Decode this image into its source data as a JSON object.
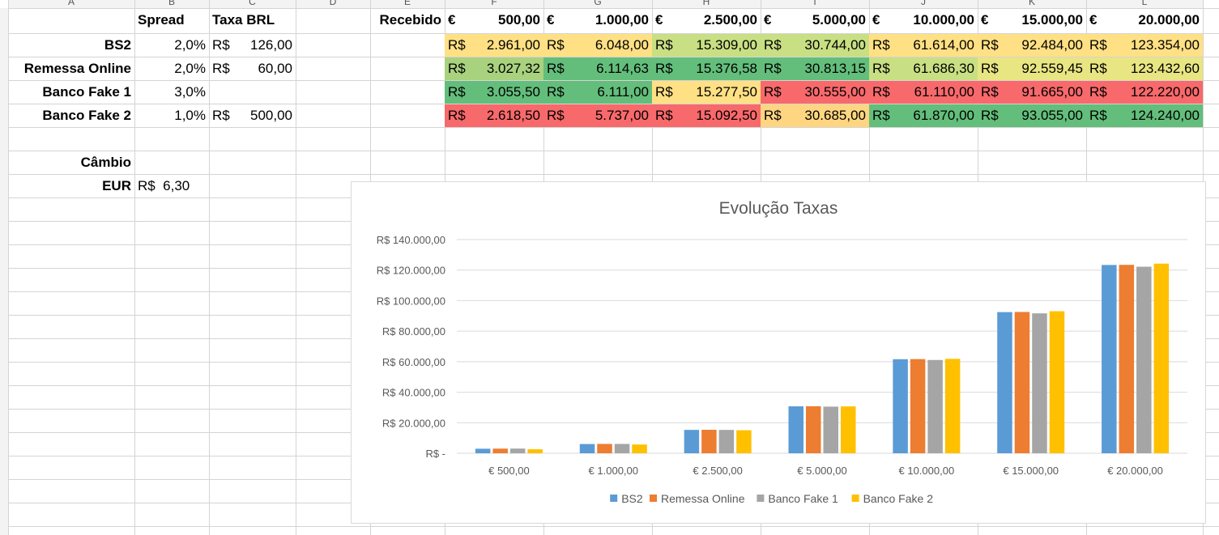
{
  "sheet": {
    "column_headers": [
      "A",
      "B",
      "C",
      "D",
      "E",
      "F",
      "G",
      "H",
      "I",
      "J",
      "K",
      "L"
    ],
    "headers": {
      "spread": "Spread",
      "taxa_brl": "Taxa BRL",
      "recebido": "Recebido",
      "cambio": "Câmbio"
    },
    "currency_symbol_eur": "€",
    "currency_symbol_brl": "R$",
    "amounts": [
      "500,00",
      "1.000,00",
      "2.500,00",
      "5.000,00",
      "10.000,00",
      "15.000,00",
      "20.000,00"
    ],
    "banks": [
      {
        "name": "BS2",
        "spread": "2,0%",
        "taxa": "126,00",
        "received": [
          "2.961,00",
          "6.048,00",
          "15.309,00",
          "30.744,00",
          "61.614,00",
          "92.484,00",
          "123.354,00"
        ],
        "colors": [
          "#ffe084",
          "#ffe084",
          "#c9df83",
          "#c9df83",
          "#ffe084",
          "#ffe084",
          "#ffe084"
        ]
      },
      {
        "name": "Remessa Online",
        "spread": "2,0%",
        "taxa": "60,00",
        "received": [
          "3.027,32",
          "6.114,63",
          "15.376,58",
          "30.813,15",
          "61.686,30",
          "92.559,45",
          "123.432,60"
        ],
        "colors": [
          "#a9d27f",
          "#63be7b",
          "#63be7b",
          "#63be7b",
          "#c9df83",
          "#e8e583",
          "#e8e583"
        ]
      },
      {
        "name": "Banco Fake 1",
        "spread": "3,0%",
        "taxa": "",
        "received": [
          "3.055,50",
          "6.111,00",
          "15.277,50",
          "30.555,00",
          "61.110,00",
          "91.665,00",
          "122.220,00"
        ],
        "colors": [
          "#63be7b",
          "#63be7b",
          "#ffe084",
          "#f8696b",
          "#f8696b",
          "#f8696b",
          "#f8696b"
        ]
      },
      {
        "name": "Banco Fake 2",
        "spread": "1,0%",
        "taxa": "500,00",
        "received": [
          "2.618,50",
          "5.737,00",
          "15.092,50",
          "30.685,00",
          "61.870,00",
          "93.055,00",
          "124.240,00"
        ],
        "colors": [
          "#f8696b",
          "#f8696b",
          "#f8696b",
          "#fed580",
          "#63be7b",
          "#63be7b",
          "#63be7b"
        ]
      }
    ],
    "eur_label": "EUR",
    "eur_rate": "6,30"
  },
  "chart_data": {
    "type": "bar",
    "title": "Evolução Taxas",
    "categories": [
      "€ 500,00",
      "€ 1.000,00",
      "€ 2.500,00",
      "€ 5.000,00",
      "€ 10.000,00",
      "€ 15.000,00",
      "€ 20.000,00"
    ],
    "series": [
      {
        "name": "BS2",
        "color": "#5b9bd5",
        "values": [
          2961.0,
          6048.0,
          15309.0,
          30744.0,
          61614.0,
          92484.0,
          123354.0
        ]
      },
      {
        "name": "Remessa Online",
        "color": "#ed7d31",
        "values": [
          3027.32,
          6114.63,
          15376.58,
          30813.15,
          61686.3,
          92559.45,
          123432.6
        ]
      },
      {
        "name": "Banco Fake 1",
        "color": "#a5a5a5",
        "values": [
          3055.5,
          6111.0,
          15277.5,
          30555.0,
          61110.0,
          91665.0,
          122220.0
        ]
      },
      {
        "name": "Banco Fake 2",
        "color": "#ffc000",
        "values": [
          2618.5,
          5737.0,
          15092.5,
          30685.0,
          61870.0,
          93055.0,
          124240.0
        ]
      }
    ],
    "ylim": [
      0,
      140000
    ],
    "y_ticks": [
      0,
      20000,
      40000,
      60000,
      80000,
      100000,
      120000,
      140000
    ],
    "y_tick_labels": [
      "R$ -",
      "R$ 20.000,00",
      "R$ 40.000,00",
      "R$ 60.000,00",
      "R$ 80.000,00",
      "R$ 100.000,00",
      "R$ 120.000,00",
      "R$ 140.000,00"
    ],
    "grid": true,
    "legend_position": "bottom"
  }
}
